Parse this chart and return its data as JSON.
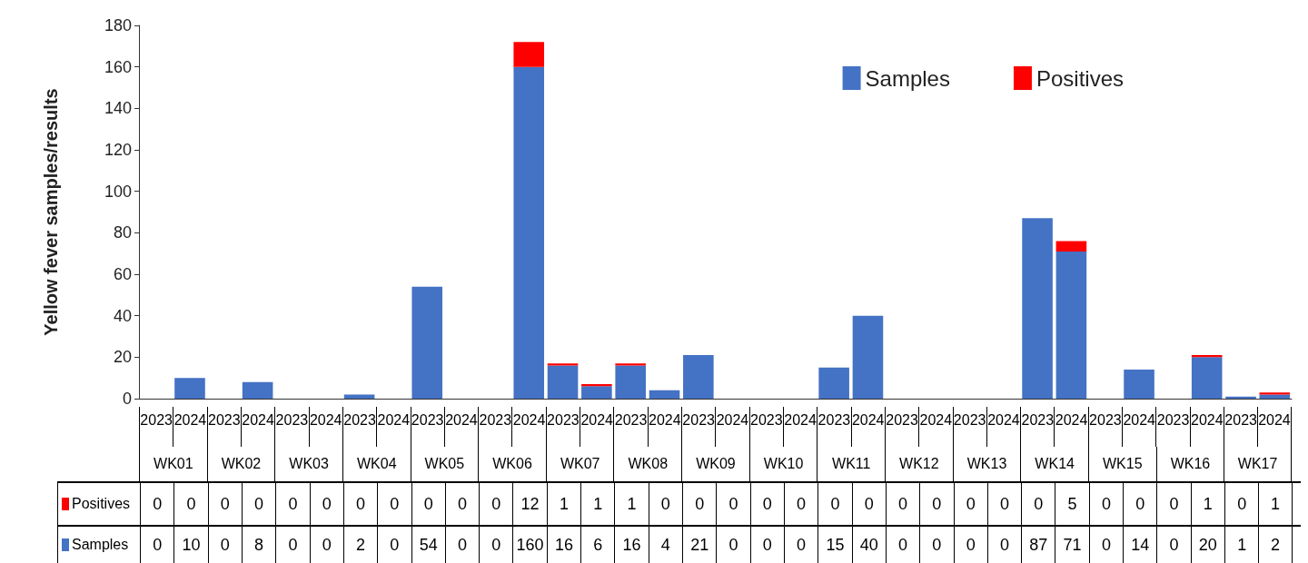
{
  "chart_data": {
    "type": "bar",
    "stacked": true,
    "ylabel": "Yellow fever samples/results",
    "categories": [
      "2023",
      "2024",
      "2023",
      "2024",
      "2023",
      "2024",
      "2023",
      "2024",
      "2023",
      "2024",
      "2023",
      "2024",
      "2023",
      "2024",
      "2023",
      "2024",
      "2023",
      "2024",
      "2023",
      "2024",
      "2023",
      "2024",
      "2023",
      "2024",
      "2023",
      "2024",
      "2023",
      "2024",
      "2023",
      "2024",
      "2023",
      "2024",
      "2023",
      "2024"
    ],
    "annotations": [
      "WK01",
      "WK02",
      "WK03",
      "WK04",
      "WK05",
      "WK06",
      "WK07",
      "WK08",
      "WK09",
      "WK10",
      "WK11",
      "WK12",
      "WK13",
      "WK14",
      "WK15",
      "WK16",
      "WK17"
    ],
    "series": [
      {
        "name": "Samples",
        "color": "#4472c4",
        "values": [
          0,
          10,
          0,
          8,
          0,
          0,
          2,
          0,
          54,
          0,
          0,
          160,
          16,
          6,
          16,
          4,
          21,
          0,
          0,
          0,
          15,
          40,
          0,
          0,
          0,
          0,
          87,
          71,
          0,
          14,
          0,
          20,
          1,
          2
        ]
      },
      {
        "name": "Positives",
        "color": "#ff0000",
        "values": [
          0,
          0,
          0,
          0,
          0,
          0,
          0,
          0,
          0,
          0,
          0,
          12,
          1,
          1,
          1,
          0,
          0,
          0,
          0,
          0,
          0,
          0,
          0,
          0,
          0,
          0,
          0,
          5,
          0,
          0,
          0,
          1,
          0,
          1
        ]
      }
    ],
    "ylim": [
      0,
      180
    ],
    "yticks": [
      0,
      20,
      40,
      60,
      80,
      100,
      120,
      140,
      160,
      180
    ],
    "grid": false,
    "legend": "top right",
    "data_labels": true
  }
}
